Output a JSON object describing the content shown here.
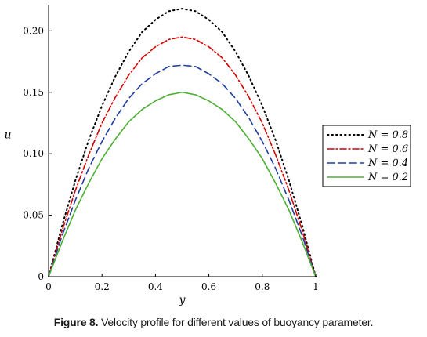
{
  "caption": {
    "label": "Figure 8.",
    "text": "Velocity profile for different values of buoyancy parameter."
  },
  "chart_data": {
    "type": "line",
    "title": "",
    "xlabel": "y",
    "ylabel": "u",
    "xlim": [
      0,
      1
    ],
    "ylim": [
      0,
      0.22
    ],
    "x_ticks": [
      "0",
      "0.2",
      "0.4",
      "0.6",
      "0.8",
      "1"
    ],
    "y_ticks": [
      "0",
      "0.05",
      "0.10",
      "0.15",
      "0.20"
    ],
    "grid": false,
    "legend_position": "right",
    "x": [
      0,
      0.05,
      0.1,
      0.15,
      0.2,
      0.25,
      0.3,
      0.35,
      0.4,
      0.45,
      0.5,
      0.55,
      0.6,
      0.65,
      0.7,
      0.75,
      0.8,
      0.85,
      0.9,
      0.95,
      1
    ],
    "series": [
      {
        "name": "N = 0.8",
        "color": "#000000",
        "dash": "dotted",
        "values": [
          0,
          0.041,
          0.078,
          0.111,
          0.139,
          0.163,
          0.183,
          0.199,
          0.209,
          0.216,
          0.218,
          0.216,
          0.209,
          0.199,
          0.183,
          0.163,
          0.139,
          0.111,
          0.078,
          0.041,
          0
        ]
      },
      {
        "name": "N = 0.6",
        "color": "#d40000",
        "dash": "dashdot",
        "values": [
          0,
          0.037,
          0.07,
          0.099,
          0.125,
          0.146,
          0.164,
          0.178,
          0.187,
          0.193,
          0.195,
          0.193,
          0.187,
          0.178,
          0.164,
          0.146,
          0.125,
          0.099,
          0.07,
          0.037,
          0
        ]
      },
      {
        "name": "N = 0.4",
        "color": "#1f3fa0",
        "dash": "dashed",
        "values": [
          0,
          0.033,
          0.062,
          0.088,
          0.11,
          0.129,
          0.145,
          0.157,
          0.165,
          0.171,
          0.172,
          0.171,
          0.165,
          0.157,
          0.145,
          0.129,
          0.11,
          0.088,
          0.062,
          0.033,
          0
        ]
      },
      {
        "name": "N = 0.2",
        "color": "#4caf32",
        "dash": "solid",
        "values": [
          0,
          0.028,
          0.054,
          0.076,
          0.096,
          0.112,
          0.126,
          0.136,
          0.143,
          0.148,
          0.15,
          0.148,
          0.143,
          0.136,
          0.126,
          0.112,
          0.096,
          0.076,
          0.054,
          0.028,
          0
        ]
      }
    ]
  }
}
